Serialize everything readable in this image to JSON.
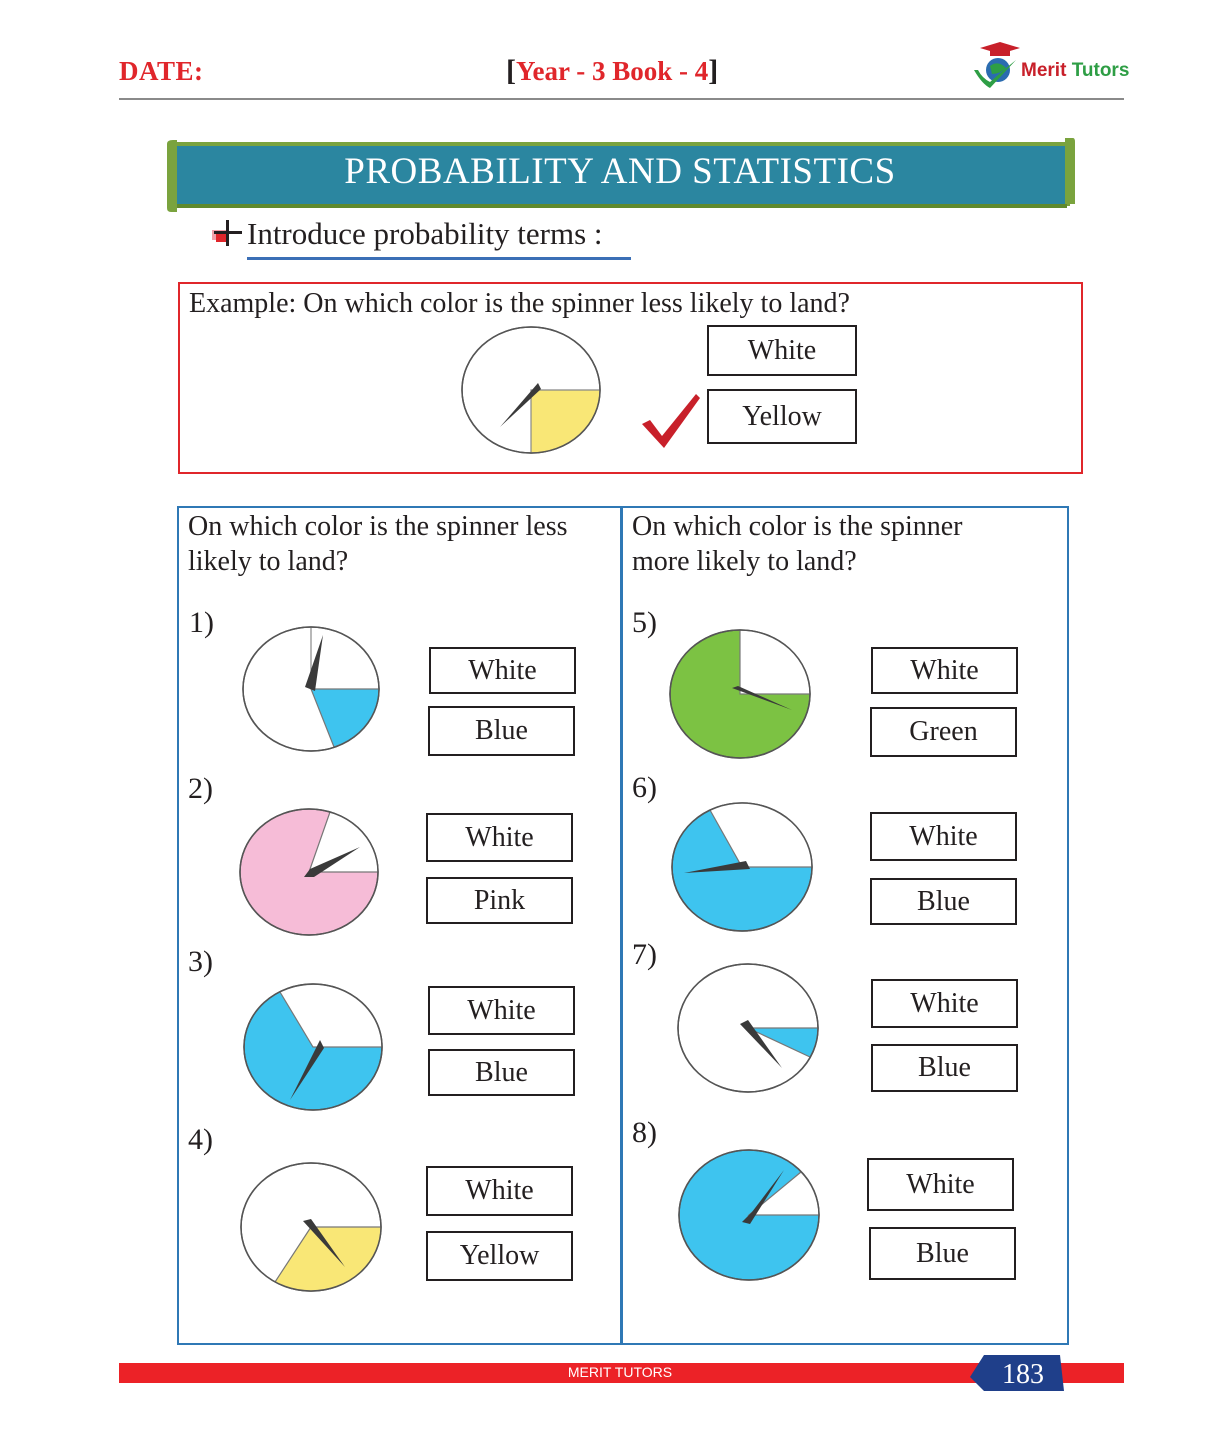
{
  "header": {
    "date_label": "DATE:",
    "book_label": "Year - 3 Book - 4",
    "bracket_open": "[",
    "bracket_close": "]",
    "logo_brand_1": "Merit",
    "logo_brand_2": "Tutors"
  },
  "banner": {
    "title": "PROBABILITY AND STATISTICS"
  },
  "intro": {
    "text": "Introduce probability terms :"
  },
  "example": {
    "question": "Example: On which color is the spinner less likely to land?",
    "option_1": "White",
    "option_2": "Yellow",
    "colors": {
      "fill": "#f9e776"
    }
  },
  "left_column": {
    "question": "On which color is the spinner less likely to land?",
    "problems": [
      {
        "num": "1)",
        "option_1": "White",
        "option_2": "Blue"
      },
      {
        "num": "2)",
        "option_1": "White",
        "option_2": "Pink"
      },
      {
        "num": "3)",
        "option_1": "White",
        "option_2": "Blue"
      },
      {
        "num": "4)",
        "option_1": "White",
        "option_2": "Yellow"
      }
    ]
  },
  "right_column": {
    "question": "On which color is the spinner more likely to land?",
    "problems": [
      {
        "num": "5)",
        "option_1": "White",
        "option_2": "Green"
      },
      {
        "num": "6)",
        "option_1": "White",
        "option_2": "Blue"
      },
      {
        "num": "7)",
        "option_1": "White",
        "option_2": "Blue"
      },
      {
        "num": "8)",
        "option_1": "White",
        "option_2": "Blue"
      }
    ]
  },
  "footer": {
    "brand": "MERIT TUTORS",
    "page_number": "183"
  },
  "colors": {
    "blue": "#3ec4ef",
    "pink": "#f6bcd7",
    "yellow": "#f9e776",
    "green": "#7cc243",
    "accent_red": "#e0262b",
    "banner_teal": "#2b86a0",
    "banner_frame": "#7aa33e"
  }
}
